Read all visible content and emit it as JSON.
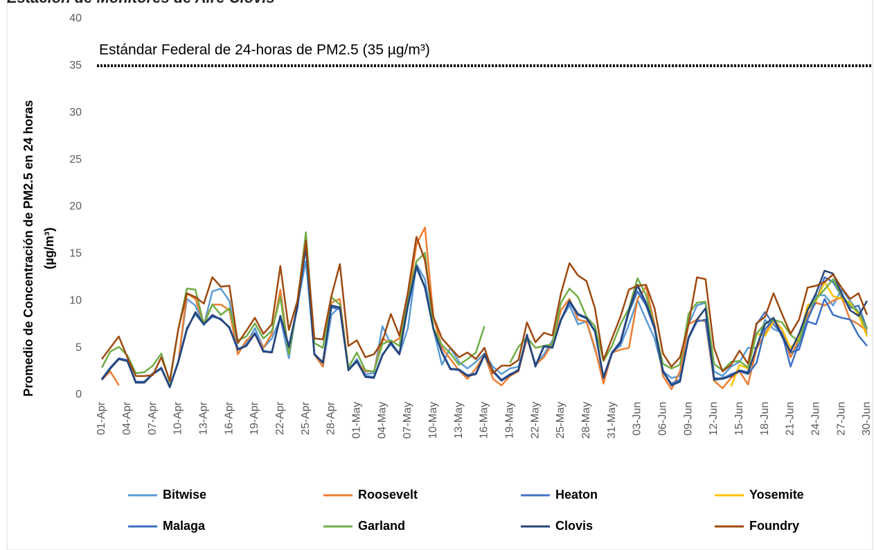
{
  "chart_data": {
    "type": "line",
    "title": "Estación de Monitores de Aire Clovis",
    "ylabel": [
      "Promedio de Concentración de PM2.5 en 24 horas",
      "(µg/m³)"
    ],
    "reference_line": {
      "value": 35,
      "label": "Estándar Federal de 24-horas de PM2.5 (35 µg/m³)"
    },
    "ylim": [
      0,
      40
    ],
    "yticks": [
      0,
      5,
      10,
      15,
      20,
      25,
      30,
      35,
      40
    ],
    "categories": [
      "01-Apr",
      null,
      null,
      "04-Apr",
      null,
      null,
      "07-Apr",
      null,
      null,
      "10-Apr",
      null,
      null,
      "13-Apr",
      null,
      null,
      "16-Apr",
      null,
      null,
      "19-Apr",
      null,
      null,
      "22-Apr",
      null,
      null,
      "25-Apr",
      null,
      null,
      "28-Apr",
      null,
      null,
      "01-May",
      null,
      null,
      "04-May",
      null,
      null,
      "07-May",
      null,
      null,
      "10-May",
      null,
      null,
      "13-May",
      null,
      null,
      "16-May",
      null,
      null,
      "19-May",
      null,
      null,
      "22-May",
      null,
      null,
      "25-May",
      null,
      null,
      "28-May",
      null,
      null,
      "31-May",
      null,
      null,
      "03-Jun",
      null,
      null,
      "06-Jun",
      null,
      null,
      "09-Jun",
      null,
      null,
      "12-Jun",
      null,
      null,
      "15-Jun",
      null,
      null,
      "18-Jun",
      null,
      null,
      "21-Jun",
      null,
      null,
      "24-Jun",
      null,
      null,
      "27-Jun",
      null,
      null,
      "30-Jun"
    ],
    "series": [
      {
        "name": "Bitwise",
        "color": "#5b9bd5",
        "values": [
          1.6,
          2.8,
          3.8,
          3.6,
          1.3,
          1.3,
          2.2,
          2.8,
          0.8,
          3.5,
          10.2,
          9.5,
          7.4,
          11.0,
          11.3,
          10.0,
          4.8,
          5.4,
          7.1,
          5.0,
          6.0,
          8.2,
          3.9,
          9.6,
          14.2,
          4.3,
          3.0,
          8.5,
          9.4,
          2.6,
          3.8,
          2.2,
          2.3,
          7.3,
          5.4,
          4.3,
          7.1,
          13.9,
          12.3,
          7.0,
          3.2,
          5.0,
          3.5,
          2.8,
          3.5,
          4.4,
          3.0,
          2.2,
          2.8,
          3.0,
          6.0,
          3.3,
          4.3,
          5.8,
          8.0,
          9.5,
          7.5,
          7.8,
          4.8,
          1.8,
          4.6,
          5.2,
          7.5,
          10.1,
          8.0,
          6.0,
          2.5,
          1.8,
          2.0,
          7.5,
          9.5,
          9.8,
          2.5,
          2.0,
          3.0,
          3.5,
          5.0,
          5.0,
          8.0,
          7.0,
          6.6,
          4.0,
          5.5,
          8.0,
          10.6,
          10.6,
          9.5,
          11.2,
          10.0,
          8.8,
          6.5
        ]
      },
      {
        "name": "Roosevelt",
        "color": "#ed7d31",
        "values": [
          1.6,
          2.5,
          1.0,
          null,
          null,
          null,
          null,
          null,
          null,
          3.5,
          10.8,
          10.2,
          7.6,
          9.6,
          9.6,
          9.0,
          4.3,
          5.8,
          6.5,
          5.0,
          6.5,
          11.2,
          4.3,
          9.8,
          16.0,
          4.3,
          3.0,
          9.8,
          10.2,
          2.8,
          3.5,
          2.5,
          2.5,
          6.0,
          5.5,
          6.0,
          10.0,
          16.0,
          17.8,
          8.3,
          5.0,
          3.8,
          2.6,
          1.7,
          2.8,
          4.3,
          1.7,
          1.0,
          2.0,
          2.5,
          6.0,
          3.2,
          4.0,
          5.5,
          9.0,
          10.2,
          8.0,
          7.8,
          5.0,
          1.2,
          4.5,
          4.8,
          5.0,
          10.2,
          11.5,
          7.5,
          2.0,
          0.6,
          2.5,
          7.5,
          8.0,
          7.8,
          1.5,
          0.7,
          1.8,
          2.5,
          1.1,
          4.9,
          6.5,
          8.0,
          7.0,
          4.0,
          6.0,
          8.5,
          9.8,
          9.5,
          10.0,
          10.4,
          8.0,
          7.5,
          6.8
        ]
      },
      {
        "name": "Heaton",
        "color": "#4472c4",
        "values": [
          1.6,
          2.9,
          3.9,
          3.7,
          1.3,
          1.4,
          2.3,
          2.8,
          0.9,
          3.5,
          7.0,
          8.7,
          7.6,
          8.4,
          8.0,
          7.2,
          4.9,
          5.2,
          6.6,
          4.6,
          4.6,
          8.4,
          5.2,
          9.3,
          15.8,
          4.3,
          3.5,
          9.4,
          9.2,
          2.7,
          3.6,
          2.0,
          1.9,
          4.2,
          5.5,
          4.4,
          9.5,
          13.6,
          11.5,
          7.0,
          4.6,
          2.8,
          2.7,
          2.1,
          2.3,
          4.3,
          2.6,
          1.6,
          2.1,
          2.7,
          6.3,
          3.1,
          5.2,
          5.0,
          8.0,
          9.9,
          8.6,
          8.2,
          6.8,
          1.9,
          4.5,
          5.7,
          9.0,
          11.6,
          9.7,
          7.2,
          2.6,
          1.1,
          1.5,
          6.1,
          8.0,
          9.2,
          1.7,
          1.8,
          2.1,
          2.6,
          2.4,
          7.5,
          8.8,
          7.5,
          6.5,
          3.0,
          5.5,
          8.0,
          10.0,
          12.5,
          12.0,
          10.5,
          9.2,
          9.5,
          7.0
        ]
      },
      {
        "name": "Yosemite",
        "color": "#ffc000",
        "values": [
          null,
          null,
          null,
          null,
          null,
          null,
          null,
          null,
          null,
          null,
          null,
          null,
          null,
          null,
          null,
          null,
          null,
          null,
          null,
          null,
          null,
          null,
          null,
          null,
          null,
          null,
          null,
          null,
          null,
          null,
          null,
          null,
          null,
          null,
          null,
          null,
          null,
          null,
          null,
          null,
          null,
          null,
          null,
          null,
          null,
          null,
          null,
          null,
          null,
          null,
          null,
          null,
          null,
          null,
          null,
          null,
          null,
          null,
          null,
          null,
          null,
          null,
          null,
          null,
          null,
          null,
          null,
          null,
          null,
          null,
          null,
          null,
          null,
          null,
          0.9,
          3.2,
          2.8,
          6.5,
          6.3,
          7.8,
          7.0,
          5.0,
          6.0,
          9.5,
          10.0,
          12.0,
          10.5,
          10.2,
          9.8,
          8.5,
          6.2
        ]
      },
      {
        "name": "Malaga",
        "color": "#3a6fc0",
        "values": [
          1.7,
          2.9,
          3.8,
          3.6,
          1.4,
          1.4,
          2.2,
          2.9,
          0.9,
          3.6,
          7.1,
          8.6,
          7.5,
          8.3,
          8.1,
          7.1,
          4.8,
          5.3,
          6.5,
          4.7,
          4.5,
          8.3,
          5.1,
          9.2,
          15.7,
          4.4,
          3.4,
          9.3,
          9.1,
          2.7,
          3.5,
          2.0,
          1.9,
          4.3,
          5.4,
          4.3,
          9.4,
          13.5,
          11.4,
          7.1,
          4.5,
          2.8,
          2.6,
          2.1,
          2.2,
          4.2,
          2.5,
          1.6,
          2.2,
          2.6,
          6.2,
          3.1,
          5.1,
          5.1,
          7.9,
          9.8,
          8.5,
          8.1,
          6.7,
          1.9,
          4.4,
          5.5,
          8.8,
          11.0,
          9.5,
          7.0,
          2.4,
          1.2,
          1.6,
          6.0,
          7.8,
          8.0,
          1.8,
          1.7,
          2.2,
          2.5,
          2.2,
          3.4,
          7.0,
          8.0,
          6.5,
          4.5,
          4.8,
          7.8,
          7.5,
          10.2,
          8.5,
          8.2,
          8.0,
          6.3,
          5.2
        ]
      },
      {
        "name": "Garland",
        "color": "#70ad47",
        "values": [
          2.9,
          4.6,
          5.1,
          4.2,
          2.3,
          2.4,
          3.1,
          4.4,
          1.3,
          7.0,
          11.3,
          11.2,
          7.5,
          9.6,
          8.5,
          9.2,
          5.8,
          6.2,
          7.6,
          6.0,
          6.8,
          10.4,
          4.3,
          9.8,
          17.3,
          5.5,
          5.0,
          10.4,
          9.6,
          2.9,
          4.5,
          2.6,
          2.5,
          5.4,
          5.8,
          5.2,
          10.1,
          14.2,
          15.1,
          7.1,
          5.3,
          4.4,
          3.2,
          3.8,
          4.5,
          7.3,
          null,
          null,
          3.4,
          5.1,
          6.1,
          5.0,
          5.2,
          5.4,
          9.8,
          11.3,
          10.4,
          8.3,
          7.3,
          3.6,
          5.2,
          7.5,
          9.2,
          12.4,
          10.6,
          7.2,
          3.3,
          2.8,
          3.2,
          8.6,
          9.8,
          9.9,
          3.3,
          2.6,
          3.5,
          3.6,
          2.9,
          6.5,
          7.6,
          8.0,
          7.7,
          6.4,
          5.6,
          9.0,
          10.2,
          11.2,
          12.3,
          10.6,
          9.5,
          8.8,
          7.0
        ]
      },
      {
        "name": "Clovis",
        "color": "#264478",
        "values": [
          1.6,
          2.8,
          3.8,
          3.6,
          1.3,
          1.3,
          2.2,
          2.8,
          0.8,
          3.5,
          6.9,
          8.8,
          7.5,
          8.5,
          8.0,
          7.2,
          4.8,
          5.2,
          6.5,
          4.6,
          4.5,
          8.4,
          5.1,
          9.4,
          15.9,
          4.3,
          3.4,
          9.5,
          9.3,
          2.6,
          3.6,
          1.9,
          1.8,
          4.2,
          5.6,
          4.3,
          9.6,
          13.7,
          11.4,
          7.0,
          4.5,
          2.7,
          2.7,
          2.0,
          2.2,
          4.3,
          2.5,
          1.5,
          2.1,
          2.6,
          6.4,
          3.0,
          5.2,
          5.0,
          8.0,
          10.0,
          8.6,
          8.2,
          6.8,
          1.8,
          4.4,
          5.6,
          9.0,
          11.7,
          9.8,
          7.2,
          2.5,
          1.0,
          1.4,
          6.1,
          8.0,
          9.2,
          1.6,
          1.7,
          2.0,
          2.6,
          2.3,
          5.1,
          7.5,
          8.2,
          6.2,
          4.6,
          6.5,
          9.0,
          10.8,
          13.2,
          12.9,
          10.8,
          9.0,
          8.4,
          10.0
        ]
      },
      {
        "name": "Foundry",
        "color": "#9e480e",
        "values": [
          3.8,
          5.0,
          6.2,
          4.0,
          2.0,
          2.0,
          2.1,
          4.0,
          1.5,
          7.0,
          10.8,
          10.4,
          9.7,
          12.5,
          11.5,
          11.6,
          5.5,
          6.8,
          8.2,
          6.5,
          7.5,
          13.7,
          6.9,
          10.0,
          16.4,
          6.0,
          5.9,
          10.5,
          13.9,
          5.2,
          5.8,
          4.0,
          4.3,
          5.7,
          8.6,
          6.3,
          10.9,
          16.8,
          14.3,
          8.3,
          6.0,
          5.0,
          4.0,
          4.5,
          3.8,
          5.0,
          2.3,
          3.1,
          3.1,
          3.7,
          7.7,
          5.6,
          6.6,
          6.3,
          10.8,
          14.0,
          12.7,
          12.1,
          9.2,
          3.7,
          6.0,
          8.3,
          11.2,
          11.6,
          11.7,
          9.2,
          4.4,
          3.0,
          4.0,
          7.5,
          12.5,
          12.3,
          5.0,
          2.5,
          3.2,
          4.7,
          3.3,
          7.6,
          8.3,
          10.8,
          8.6,
          6.5,
          8.0,
          11.4,
          11.6,
          12.0,
          12.8,
          11.4,
          10.2,
          10.8,
          8.5
        ]
      }
    ]
  }
}
